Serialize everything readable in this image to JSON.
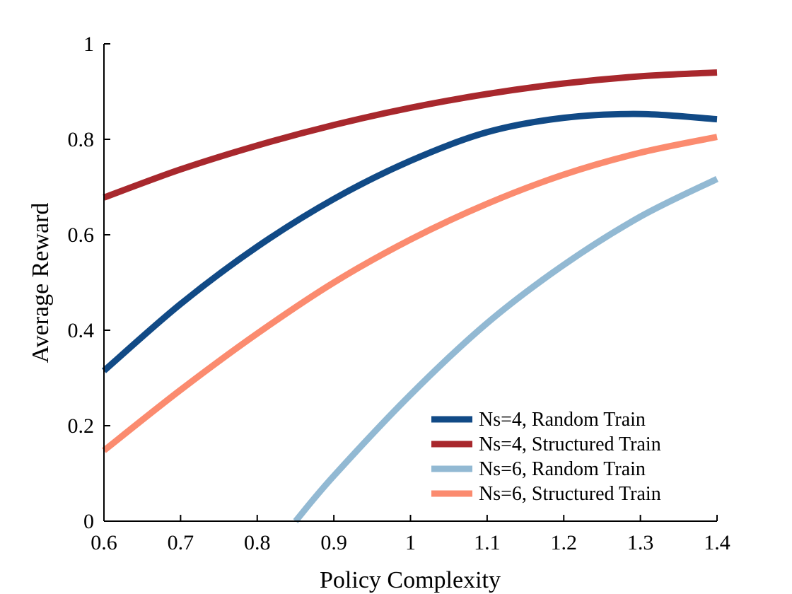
{
  "chart_data": {
    "type": "line",
    "title": "",
    "xlabel": "Policy Complexity",
    "ylabel": "Average Reward",
    "xlim": [
      0.6,
      1.4
    ],
    "ylim": [
      0,
      1
    ],
    "xticks": [
      0.6,
      0.7,
      0.8,
      0.9,
      1,
      1.1,
      1.2,
      1.3,
      1.4
    ],
    "xtick_labels": [
      "0.6",
      "0.7",
      "0.8",
      "0.9",
      "1",
      "1.1",
      "1.2",
      "1.3",
      "1.4"
    ],
    "yticks": [
      0,
      0.2,
      0.4,
      0.6,
      0.8,
      1
    ],
    "ytick_labels": [
      "0",
      "0.2",
      "0.4",
      "0.6",
      "0.8",
      "1"
    ],
    "grid": false,
    "legend_position": "bottom-right",
    "series": [
      {
        "name": "Ns=4, Random Train",
        "color": "#114A86",
        "x": [
          0.6,
          0.7,
          0.8,
          0.9,
          1.0,
          1.1,
          1.2,
          1.3,
          1.4
        ],
        "y": [
          0.315,
          0.455,
          0.575,
          0.675,
          0.755,
          0.815,
          0.845,
          0.853,
          0.842
        ]
      },
      {
        "name": "Ns=4, Structured Train",
        "color": "#A8282D",
        "x": [
          0.6,
          0.7,
          0.8,
          0.9,
          1.0,
          1.1,
          1.2,
          1.3,
          1.4
        ],
        "y": [
          0.678,
          0.737,
          0.787,
          0.83,
          0.866,
          0.895,
          0.917,
          0.932,
          0.94
        ]
      },
      {
        "name": "Ns=6, Random Train",
        "color": "#92B9D3",
        "x": [
          0.85,
          0.9,
          1.0,
          1.1,
          1.2,
          1.3,
          1.4
        ],
        "y": [
          0.0,
          0.095,
          0.265,
          0.415,
          0.537,
          0.638,
          0.717
        ]
      },
      {
        "name": "Ns=6, Structured Train",
        "color": "#FB8B6F",
        "x": [
          0.6,
          0.7,
          0.8,
          0.9,
          1.0,
          1.1,
          1.2,
          1.3,
          1.4
        ],
        "y": [
          0.148,
          0.275,
          0.393,
          0.5,
          0.59,
          0.665,
          0.726,
          0.772,
          0.805
        ]
      }
    ]
  }
}
